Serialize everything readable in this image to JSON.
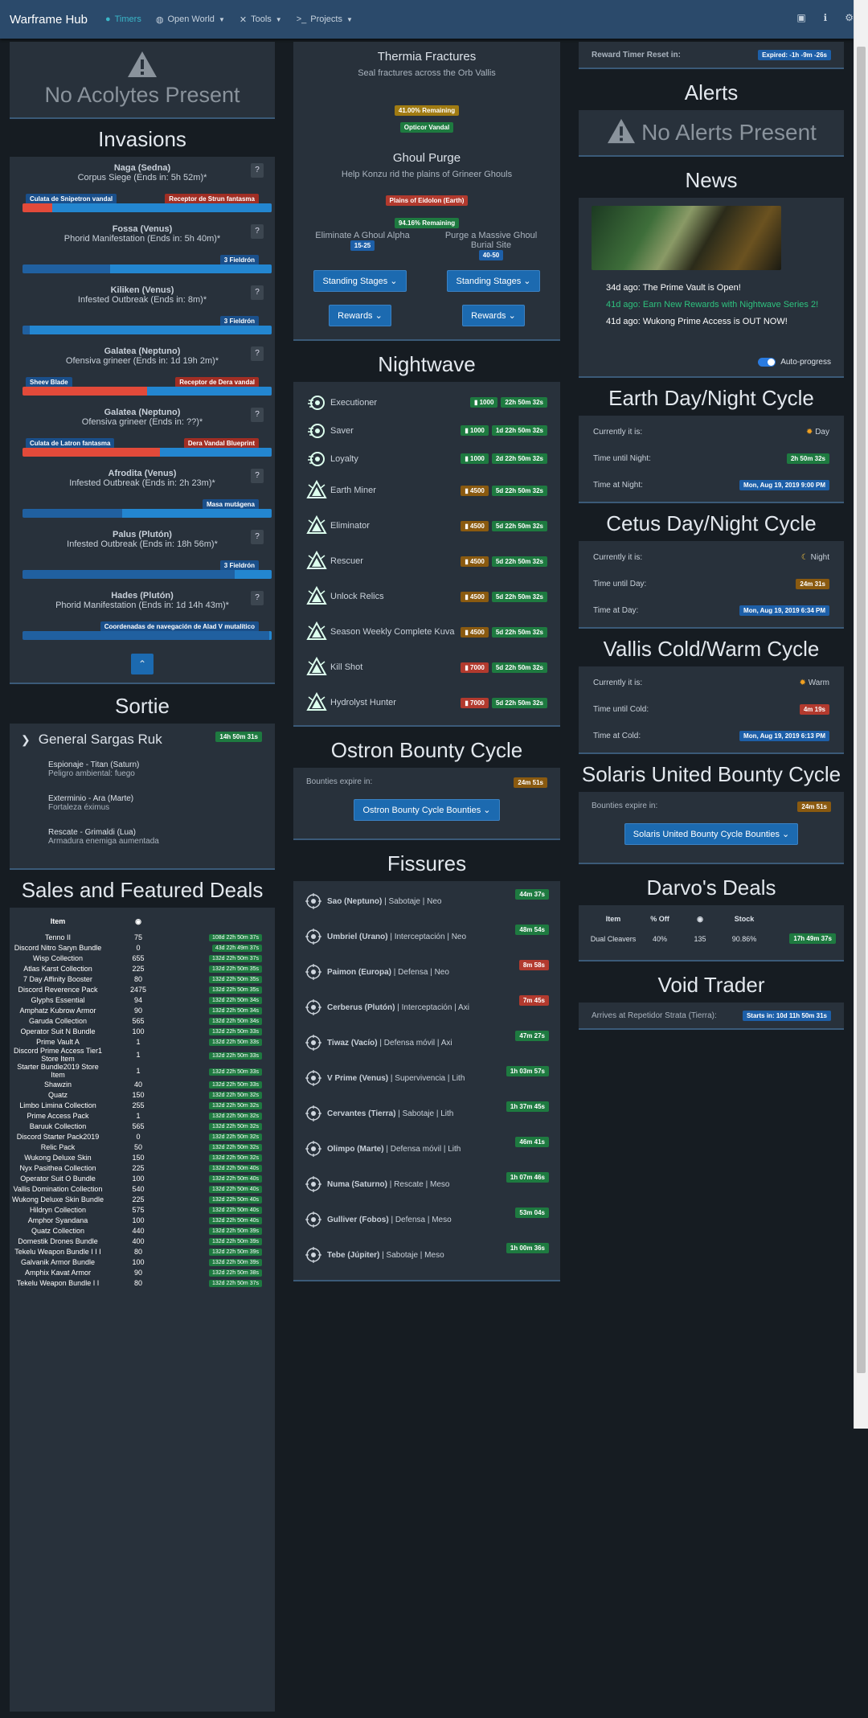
{
  "nav": {
    "brand": "Warframe Hub",
    "items": [
      "Timers",
      "Open World",
      "Tools",
      "Projects"
    ],
    "right_icons": [
      "chat-icon",
      "info-icon",
      "gear-icon"
    ]
  },
  "acolytes": {
    "text": "No Acolytes Present"
  },
  "invasions": {
    "title": "Invasions",
    "items": [
      {
        "node": "Naga (Sedna)",
        "desc": "Corpus Siege (Ends in: 5h 52m)*",
        "left_reward": "Culata de Snipetron vandal",
        "right_reward": "Receptor de Strun fantasma",
        "defender": 0.12
      },
      {
        "node": "Fossa (Venus)",
        "desc": "Phorid Manifestation (Ends in: 5h 40m)*",
        "left_reward": "",
        "right_reward": "3 Fieldrón",
        "defender": 0.0
      },
      {
        "node": "Kiliken (Venus)",
        "desc": "Infested Outbreak (Ends in: 8m)*",
        "left_reward": "",
        "right_reward": "3 Fieldrón",
        "defender": 0.0
      },
      {
        "node": "Galatea (Neptuno)",
        "desc": "Ofensiva grineer (Ends in: 1d 19h 2m)*",
        "left_reward": "Sheev Blade",
        "right_reward": "Receptor de Dera vandal",
        "defender": 0.5
      },
      {
        "node": "Galatea (Neptuno)",
        "desc": "Ofensiva grineer (Ends in: ??)*",
        "left_reward": "Culata de Latron fantasma",
        "right_reward": "Dera Vandal Blueprint",
        "defender": 0.55
      },
      {
        "node": "Afrodita (Venus)",
        "desc": "Infested Outbreak (Ends in: 2h 23m)*",
        "left_reward": "",
        "right_reward": "Masa mutágena",
        "defender": 0.0
      },
      {
        "node": "Palus (Plutón)",
        "desc": "Infested Outbreak (Ends in: 18h 56m)*",
        "left_reward": "",
        "right_reward": "3 Fieldrón",
        "defender": 0.0
      },
      {
        "node": "Hades (Plutón)",
        "desc": "Phorid Manifestation (Ends in: 1d 14h 43m)*",
        "left_reward": "",
        "right_reward": "Coordenadas de navegación de Alad V mutalítico",
        "defender": 0.0
      }
    ],
    "attacker_progress": [
      0.88,
      0.65,
      0.97,
      0.5,
      0.45,
      0.6,
      0.15,
      0.01
    ]
  },
  "sortie": {
    "title": "Sortie",
    "boss": "General Sargas Ruk",
    "timer": "14h 50m 31s",
    "missions": [
      {
        "name": "Espionaje - Titan (Saturn)",
        "mod": "Peligro ambiental: fuego"
      },
      {
        "name": "Exterminio - Ara (Marte)",
        "mod": "Fortaleza éximus"
      },
      {
        "name": "Rescate - Grimaldi (Lua)",
        "mod": "Armadura enemiga aumentada"
      }
    ]
  },
  "sales": {
    "title": "Sales and Featured Deals",
    "head_item": "Item",
    "rows": [
      [
        "Tenno II",
        "75",
        "108d 22h 50m 37s"
      ],
      [
        "Discord Nitro Saryn Bundle",
        "0",
        "43d 22h 49m 37s"
      ],
      [
        "Wisp Collection",
        "655",
        "132d 22h 50m 37s"
      ],
      [
        "Atlas Karst Collection",
        "225",
        "132d 22h 50m 35s"
      ],
      [
        "7 Day Affinity Booster",
        "80",
        "132d 22h 50m 35s"
      ],
      [
        "Discord Reverence Pack",
        "2475",
        "132d 22h 50m 35s"
      ],
      [
        "Glyphs Essential",
        "94",
        "132d 22h 50m 34s"
      ],
      [
        "Amphatz Kubrow Armor",
        "90",
        "132d 22h 50m 34s"
      ],
      [
        "Garuda Collection",
        "565",
        "132d 22h 50m 34s"
      ],
      [
        "Operator Suit N Bundle",
        "100",
        "132d 22h 50m 33s"
      ],
      [
        "Prime Vault A",
        "1",
        "132d 22h 50m 33s"
      ],
      [
        "Discord Prime Access Tier1 Store Item",
        "1",
        "132d 22h 50m 33s"
      ],
      [
        "Starter Bundle2019 Store Item",
        "1",
        "132d 22h 50m 33s"
      ],
      [
        "Shawzin",
        "40",
        "132d 22h 50m 33s"
      ],
      [
        "Quatz",
        "150",
        "132d 22h 50m 32s"
      ],
      [
        "Limbo Limina Collection",
        "255",
        "132d 22h 50m 32s"
      ],
      [
        "Prime Access Pack",
        "1",
        "132d 22h 50m 32s"
      ],
      [
        "Baruuk Collection",
        "565",
        "132d 22h 50m 32s"
      ],
      [
        "Discord Starter Pack2019",
        "0",
        "132d 22h 50m 32s"
      ],
      [
        "Relic Pack",
        "50",
        "132d 22h 50m 32s"
      ],
      [
        "Wukong Deluxe Skin",
        "150",
        "132d 22h 50m 32s"
      ],
      [
        "Nyx Pasithea Collection",
        "225",
        "132d 22h 50m 40s"
      ],
      [
        "Operator Suit O Bundle",
        "100",
        "132d 22h 50m 40s"
      ],
      [
        "Vallis Domination Collection",
        "540",
        "132d 22h 50m 40s"
      ],
      [
        "Wukong Deluxe Skin Bundle",
        "225",
        "132d 22h 50m 40s"
      ],
      [
        "Hildryn Collection",
        "575",
        "132d 22h 50m 40s"
      ],
      [
        "Amphor Syandana",
        "100",
        "132d 22h 50m 40s"
      ],
      [
        "Quatz Collection",
        "440",
        "132d 22h 50m 39s"
      ],
      [
        "Domestik Drones Bundle",
        "400",
        "132d 22h 50m 39s"
      ],
      [
        "Tekelu Weapon Bundle I I I",
        "80",
        "132d 22h 50m 39s"
      ],
      [
        "Galvanik Armor Bundle",
        "100",
        "132d 22h 50m 39s"
      ],
      [
        "Amphix Kavat Armor",
        "90",
        "132d 22h 50m 38s"
      ],
      [
        "Tekelu Weapon Bundle I I",
        "80",
        "132d 22h 50m 37s"
      ]
    ]
  },
  "events": {
    "thermia": {
      "title": "Thermia Fractures",
      "desc": "Seal fractures across the Orb Vallis",
      "remaining": "41.00% Remaining",
      "reward": "Opticor Vandal"
    },
    "ghoul": {
      "title": "Ghoul Purge",
      "desc": "Help Konzu rid the plains of Grineer Ghouls",
      "location": "Plains of Eidolon (Earth)",
      "remaining": "94.16% Remaining",
      "jobs": [
        {
          "name": "Eliminate A Ghoul Alpha",
          "level": "15-25"
        },
        {
          "name": "Purge a Massive Ghoul Burial Site",
          "level": "40-50"
        }
      ],
      "stages_btn": "Standing Stages",
      "rewards_btn": "Rewards"
    }
  },
  "nightwave": {
    "title": "Nightwave",
    "items": [
      {
        "name": "Executioner",
        "standing": "1000",
        "time": "22h 50m 32s",
        "color": "green"
      },
      {
        "name": "Saver",
        "standing": "1000",
        "time": "1d 22h 50m 32s",
        "color": "green"
      },
      {
        "name": "Loyalty",
        "standing": "1000",
        "time": "2d 22h 50m 32s",
        "color": "green"
      },
      {
        "name": "Earth Miner",
        "standing": "4500",
        "time": "5d 22h 50m 32s",
        "color": "orange"
      },
      {
        "name": "Eliminator",
        "standing": "4500",
        "time": "5d 22h 50m 32s",
        "color": "orange"
      },
      {
        "name": "Rescuer",
        "standing": "4500",
        "time": "5d 22h 50m 32s",
        "color": "orange"
      },
      {
        "name": "Unlock Relics",
        "standing": "4500",
        "time": "5d 22h 50m 32s",
        "color": "orange"
      },
      {
        "name": "Season Weekly Complete Kuva",
        "standing": "4500",
        "time": "5d 22h 50m 32s",
        "color": "orange"
      },
      {
        "name": "Kill Shot",
        "standing": "7000",
        "time": "5d 22h 50m 32s",
        "color": "red"
      },
      {
        "name": "Hydrolyst Hunter",
        "standing": "7000",
        "time": "5d 22h 50m 32s",
        "color": "red"
      }
    ]
  },
  "ostron": {
    "title": "Ostron Bounty Cycle",
    "label": "Bounties expire in:",
    "timer": "24m 51s",
    "button": "Ostron Bounty Cycle Bounties"
  },
  "fissures": {
    "title": "Fissures",
    "items": [
      {
        "node": "Sao (Neptuno)",
        "rest": " | Sabotaje | Neo",
        "time": "44m 37s",
        "color": "green"
      },
      {
        "node": "Umbriel (Urano)",
        "rest": " | Interceptación | Neo",
        "time": "48m 54s",
        "color": "green"
      },
      {
        "node": "Paimon (Europa)",
        "rest": " | Defensa | Neo",
        "time": "8m 58s",
        "color": "red"
      },
      {
        "node": "Cerberus (Plutón)",
        "rest": " | Interceptación | Axi",
        "time": "7m 45s",
        "color": "red"
      },
      {
        "node": "Tiwaz (Vacío)",
        "rest": " | Defensa móvil | Axi",
        "time": "47m 27s",
        "color": "green"
      },
      {
        "node": "V Prime (Venus)",
        "rest": " | Supervivencia | Lith",
        "time": "1h 03m 57s",
        "color": "green"
      },
      {
        "node": "Cervantes (Tierra)",
        "rest": " | Sabotaje | Lith",
        "time": "1h 37m 45s",
        "color": "green"
      },
      {
        "node": "Olimpo (Marte)",
        "rest": " | Defensa móvil | Lith",
        "time": "46m 41s",
        "color": "green"
      },
      {
        "node": "Numa (Saturno)",
        "rest": " | Rescate | Meso",
        "time": "1h 07m 46s",
        "color": "green"
      },
      {
        "node": "Gulliver (Fobos)",
        "rest": " | Defensa | Meso",
        "time": "53m 04s",
        "color": "green"
      },
      {
        "node": "Tebe (Júpiter)",
        "rest": " | Sabotaje | Meso",
        "time": "1h 00m 36s",
        "color": "green"
      }
    ]
  },
  "reward_reset": {
    "label": "Reward Timer Reset in:",
    "value": "Expired: -1h -9m -26s"
  },
  "alerts": {
    "title": "Alerts",
    "empty": "No Alerts Present"
  },
  "news": {
    "title": "News",
    "items": [
      {
        "text": "34d ago: The Prime Vault is Open!",
        "highlight": false
      },
      {
        "text": "41d ago: Earn New Rewards with Nightwave Series 2!",
        "highlight": true
      },
      {
        "text": "41d ago: Wukong Prime Access is OUT NOW!",
        "highlight": false
      }
    ],
    "autoprogress": "Auto-progress"
  },
  "earth": {
    "title": "Earth Day/Night Cycle",
    "current_label": "Currently it is:",
    "current": "Day",
    "until_label": "Time until Night:",
    "until": "2h 50m 32s",
    "at_label": "Time at Night:",
    "at": "Mon, Aug 19, 2019 9:00 PM"
  },
  "cetus": {
    "title": "Cetus Day/Night Cycle",
    "current_label": "Currently it is:",
    "current": "Night",
    "until_label": "Time until Day:",
    "until": "24m 31s",
    "at_label": "Time at Day:",
    "at": "Mon, Aug 19, 2019 6:34 PM"
  },
  "vallis": {
    "title": "Vallis Cold/Warm Cycle",
    "current_label": "Currently it is:",
    "current": "Warm",
    "until_label": "Time until Cold:",
    "until": "4m 19s",
    "at_label": "Time at Cold:",
    "at": "Mon, Aug 19, 2019 6:13 PM"
  },
  "solaris": {
    "title": "Solaris United Bounty Cycle",
    "label": "Bounties expire in:",
    "timer": "24m 51s",
    "button": "Solaris United Bounty Cycle Bounties"
  },
  "darvo": {
    "title": "Darvo's Deals",
    "head": [
      "Item",
      "% Off",
      "Stock"
    ],
    "item": "Dual Cleavers",
    "off": "40%",
    "price": "135",
    "stock": "90.86%",
    "time": "17h 49m 37s"
  },
  "baro": {
    "title": "Void Trader",
    "label": "Arrives at Repetidor Strata (Tierra):",
    "value": "Starts in: 10d 11h 50m 31s"
  }
}
